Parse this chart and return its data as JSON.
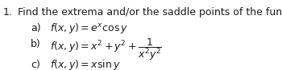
{
  "title_number": "1.",
  "title_text": "Find the extrema and/or the saddle points of the functions.",
  "item_a_label": "a)",
  "item_a_math": "$f(x, y) = e^x \\cos y$",
  "item_b_label": "b)",
  "item_b_math": "$f(x, y) = x^2 + y^2 + \\dfrac{1}{x^2 y^2}$",
  "item_c_label": "c)",
  "item_c_math": "$f(x, y) = x \\sin y$",
  "bg_color": "#ffffff",
  "text_color": "#1a1a1a",
  "font_size_title": 9.0,
  "font_size_items": 9.0,
  "fig_width": 3.5,
  "fig_height": 0.88,
  "dpi": 100
}
